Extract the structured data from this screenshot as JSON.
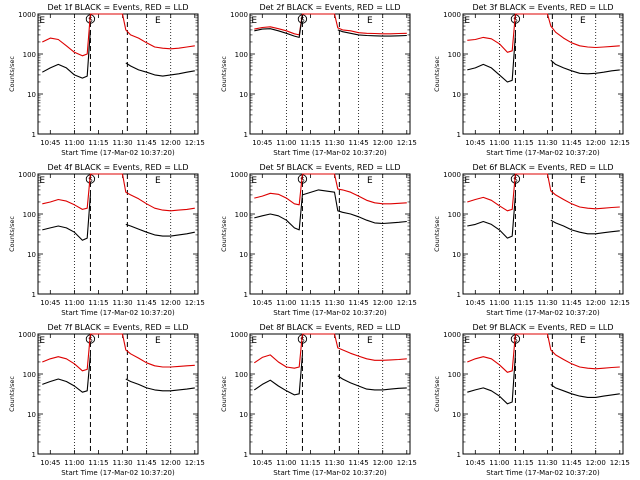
{
  "figure": {
    "x_tick_labels": [
      "10:45",
      "11:00",
      "11:15",
      "11:30",
      "11:45",
      "12:00",
      "12:15"
    ],
    "y_tick_labels": [
      "1",
      "10",
      "100",
      "1000"
    ],
    "ylabel": "Counts/sec",
    "xlabel": "Start Time (17-Mar-02 10:37:20)",
    "event_markers": {
      "start": "E",
      "sun": "S",
      "end": "E"
    },
    "colors": {
      "events": "#000000",
      "lld": "#dd0000"
    }
  },
  "chart_data": [
    {
      "type": "line",
      "title": "Det 1f BLACK = Events, RED = LLD",
      "xlabel": "Start Time (17-Mar-02 10:37:20)",
      "ylabel": "Counts/sec",
      "ylim": [
        1,
        1000
      ],
      "y_scale": "log",
      "x_range": [
        "10:37:20",
        "12:17:00"
      ],
      "x": [
        "10:40",
        "10:45",
        "10:50",
        "10:55",
        "11:00",
        "11:05",
        "11:08",
        "11:10",
        "11:20",
        "11:30",
        "11:32",
        "11:35",
        "11:40",
        "11:45",
        "11:50",
        "11:55",
        "12:00",
        "12:05",
        "12:10",
        "12:15"
      ],
      "series": [
        {
          "name": "LLD",
          "color": "#dd0000",
          "values": [
            200,
            250,
            230,
            160,
            110,
            90,
            100,
            1000,
            1000,
            1000,
            400,
            300,
            250,
            190,
            150,
            140,
            135,
            140,
            150,
            160
          ]
        },
        {
          "name": "Events",
          "color": "#000000",
          "values": [
            35,
            45,
            55,
            45,
            30,
            25,
            28,
            400,
            null,
            null,
            60,
            50,
            40,
            35,
            30,
            28,
            30,
            32,
            35,
            38
          ]
        }
      ]
    },
    {
      "type": "line",
      "title": "Det 2f BLACK = Events, RED = LLD",
      "xlabel": "Start Time (17-Mar-02 10:37:20)",
      "ylabel": "Counts/sec",
      "ylim": [
        1,
        1000
      ],
      "y_scale": "log",
      "x_range": [
        "10:37:20",
        "12:17:00"
      ],
      "x": [
        "10:40",
        "10:45",
        "10:50",
        "10:55",
        "11:00",
        "11:05",
        "11:08",
        "11:10",
        "11:20",
        "11:30",
        "11:32",
        "11:35",
        "11:40",
        "11:45",
        "11:50",
        "11:55",
        "12:00",
        "12:05",
        "12:10",
        "12:15"
      ],
      "series": [
        {
          "name": "LLD",
          "color": "#dd0000",
          "values": [
            420,
            460,
            480,
            430,
            380,
            320,
            300,
            1000,
            1000,
            1000,
            450,
            400,
            380,
            340,
            330,
            325,
            320,
            320,
            325,
            330
          ]
        },
        {
          "name": "Events",
          "color": "#000000",
          "values": [
            380,
            420,
            430,
            380,
            330,
            280,
            260,
            950,
            null,
            null,
            400,
            360,
            330,
            300,
            290,
            285,
            280,
            280,
            285,
            290
          ]
        }
      ]
    },
    {
      "type": "line",
      "title": "Det 3f BLACK = Events, RED = LLD",
      "xlabel": "Start Time (17-Mar-02 10:37:20)",
      "ylabel": "Counts/sec",
      "ylim": [
        1,
        1000
      ],
      "y_scale": "log",
      "x_range": [
        "10:37:20",
        "12:17:00"
      ],
      "x": [
        "10:40",
        "10:45",
        "10:50",
        "10:55",
        "11:00",
        "11:05",
        "11:08",
        "11:10",
        "11:20",
        "11:30",
        "11:32",
        "11:35",
        "11:40",
        "11:45",
        "11:50",
        "11:55",
        "12:00",
        "12:05",
        "12:10",
        "12:15"
      ],
      "series": [
        {
          "name": "LLD",
          "color": "#dd0000",
          "values": [
            220,
            230,
            260,
            240,
            180,
            110,
            120,
            1000,
            1000,
            1000,
            500,
            350,
            250,
            190,
            160,
            150,
            145,
            150,
            155,
            160
          ]
        },
        {
          "name": "Events",
          "color": "#000000",
          "values": [
            40,
            45,
            55,
            45,
            30,
            20,
            22,
            300,
            null,
            null,
            70,
            55,
            45,
            38,
            33,
            32,
            33,
            35,
            38,
            40
          ]
        }
      ]
    },
    {
      "type": "line",
      "title": "Det 4f BLACK = Events, RED = LLD",
      "xlabel": "Start Time (17-Mar-02 10:37:20)",
      "ylabel": "Counts/sec",
      "ylim": [
        1,
        1000
      ],
      "y_scale": "log",
      "x_range": [
        "10:37:20",
        "12:17:00"
      ],
      "x": [
        "10:40",
        "10:45",
        "10:50",
        "10:55",
        "11:00",
        "11:05",
        "11:08",
        "11:10",
        "11:20",
        "11:30",
        "11:32",
        "11:35",
        "11:40",
        "11:45",
        "11:50",
        "11:55",
        "12:00",
        "12:05",
        "12:10",
        "12:15"
      ],
      "series": [
        {
          "name": "LLD",
          "color": "#dd0000",
          "values": [
            180,
            200,
            230,
            210,
            170,
            130,
            140,
            1000,
            1000,
            1000,
            350,
            300,
            240,
            180,
            140,
            125,
            120,
            125,
            130,
            140
          ]
        },
        {
          "name": "Events",
          "color": "#000000",
          "values": [
            40,
            45,
            50,
            45,
            35,
            22,
            25,
            300,
            null,
            null,
            55,
            50,
            42,
            35,
            30,
            28,
            28,
            30,
            32,
            35
          ]
        }
      ]
    },
    {
      "type": "line",
      "title": "Det 5f BLACK = Events, RED = LLD",
      "xlabel": "Start Time (17-Mar-02 10:37:20)",
      "ylabel": "Counts/sec",
      "ylim": [
        1,
        1000
      ],
      "y_scale": "log",
      "x_range": [
        "10:37:20",
        "12:17:00"
      ],
      "x": [
        "10:40",
        "10:45",
        "10:50",
        "10:55",
        "11:00",
        "11:05",
        "11:08",
        "11:10",
        "11:20",
        "11:30",
        "11:32",
        "11:35",
        "11:40",
        "11:45",
        "11:50",
        "11:55",
        "12:00",
        "12:05",
        "12:10",
        "12:15"
      ],
      "series": [
        {
          "name": "LLD",
          "color": "#dd0000",
          "values": [
            250,
            280,
            330,
            310,
            250,
            180,
            170,
            1000,
            1000,
            1000,
            420,
            400,
            350,
            280,
            220,
            190,
            180,
            180,
            185,
            190
          ]
        },
        {
          "name": "Events",
          "color": "#000000",
          "values": [
            80,
            90,
            100,
            90,
            70,
            45,
            40,
            300,
            400,
            350,
            120,
            110,
            100,
            85,
            70,
            60,
            58,
            60,
            62,
            65
          ]
        }
      ]
    },
    {
      "type": "line",
      "title": "Det 6f BLACK = Events, RED = LLD",
      "xlabel": "Start Time (17-Mar-02 10:37:20)",
      "ylabel": "Counts/sec",
      "ylim": [
        1,
        1000
      ],
      "y_scale": "log",
      "x_range": [
        "10:37:20",
        "12:17:00"
      ],
      "x": [
        "10:40",
        "10:45",
        "10:50",
        "10:55",
        "11:00",
        "11:05",
        "11:08",
        "11:10",
        "11:20",
        "11:30",
        "11:32",
        "11:35",
        "11:40",
        "11:45",
        "11:50",
        "11:55",
        "12:00",
        "12:05",
        "12:10",
        "12:15"
      ],
      "series": [
        {
          "name": "LLD",
          "color": "#dd0000",
          "values": [
            200,
            230,
            260,
            220,
            160,
            120,
            130,
            1000,
            1000,
            1000,
            380,
            300,
            230,
            180,
            150,
            140,
            135,
            140,
            145,
            150
          ]
        },
        {
          "name": "Events",
          "color": "#000000",
          "values": [
            50,
            55,
            65,
            55,
            40,
            25,
            28,
            300,
            null,
            null,
            70,
            60,
            50,
            40,
            35,
            32,
            32,
            34,
            36,
            38
          ]
        }
      ]
    },
    {
      "type": "line",
      "title": "Det 7f BLACK = Events, RED = LLD",
      "xlabel": "Start Time (17-Mar-02 10:37:20)",
      "ylabel": "Counts/sec",
      "ylim": [
        1,
        1000
      ],
      "y_scale": "log",
      "x_range": [
        "10:37:20",
        "12:17:00"
      ],
      "x": [
        "10:40",
        "10:45",
        "10:50",
        "10:55",
        "11:00",
        "11:05",
        "11:08",
        "11:10",
        "11:20",
        "11:30",
        "11:32",
        "11:35",
        "11:40",
        "11:45",
        "11:50",
        "11:55",
        "12:00",
        "12:05",
        "12:10",
        "12:15"
      ],
      "series": [
        {
          "name": "LLD",
          "color": "#dd0000",
          "values": [
            200,
            240,
            270,
            240,
            180,
            120,
            130,
            1000,
            1000,
            1000,
            400,
            320,
            250,
            190,
            160,
            150,
            150,
            155,
            160,
            165
          ]
        },
        {
          "name": "Events",
          "color": "#000000",
          "values": [
            55,
            65,
            75,
            65,
            50,
            35,
            38,
            300,
            null,
            null,
            75,
            65,
            55,
            45,
            40,
            38,
            38,
            40,
            42,
            45
          ]
        }
      ]
    },
    {
      "type": "line",
      "title": "Det 8f BLACK = Events, RED = LLD",
      "xlabel": "Start Time (17-Mar-02 10:37:20)",
      "ylabel": "Counts/sec",
      "ylim": [
        1,
        1000
      ],
      "y_scale": "log",
      "x_range": [
        "10:37:20",
        "12:17:00"
      ],
      "x": [
        "10:40",
        "10:45",
        "10:50",
        "10:55",
        "11:00",
        "11:05",
        "11:08",
        "11:10",
        "11:20",
        "11:30",
        "11:32",
        "11:35",
        "11:40",
        "11:45",
        "11:50",
        "11:55",
        "12:00",
        "12:05",
        "12:10",
        "12:15"
      ],
      "series": [
        {
          "name": "LLD",
          "color": "#dd0000",
          "values": [
            190,
            260,
            300,
            200,
            150,
            140,
            150,
            1000,
            1000,
            1000,
            450,
            400,
            330,
            280,
            240,
            220,
            220,
            225,
            230,
            240
          ]
        },
        {
          "name": "Events",
          "color": "#000000",
          "values": [
            40,
            55,
            70,
            50,
            38,
            30,
            32,
            300,
            null,
            null,
            90,
            75,
            60,
            50,
            42,
            40,
            40,
            42,
            44,
            45
          ]
        }
      ]
    },
    {
      "type": "line",
      "title": "Det 9f BLACK = Events, RED = LLD",
      "xlabel": "Start Time (17-Mar-02 10:37:20)",
      "ylabel": "Counts/sec",
      "ylim": [
        1,
        1000
      ],
      "y_scale": "log",
      "x_range": [
        "10:37:20",
        "12:17:00"
      ],
      "x": [
        "10:40",
        "10:45",
        "10:50",
        "10:55",
        "11:00",
        "11:05",
        "11:08",
        "11:10",
        "11:20",
        "11:30",
        "11:32",
        "11:35",
        "11:40",
        "11:45",
        "11:50",
        "11:55",
        "12:00",
        "12:05",
        "12:10",
        "12:15"
      ],
      "series": [
        {
          "name": "LLD",
          "color": "#dd0000",
          "values": [
            200,
            240,
            270,
            240,
            170,
            110,
            120,
            1000,
            1000,
            1000,
            400,
            300,
            230,
            180,
            150,
            140,
            135,
            140,
            145,
            150
          ]
        },
        {
          "name": "Events",
          "color": "#000000",
          "values": [
            35,
            40,
            45,
            38,
            28,
            18,
            20,
            300,
            null,
            null,
            55,
            45,
            38,
            32,
            28,
            26,
            26,
            28,
            30,
            32
          ]
        }
      ]
    }
  ]
}
